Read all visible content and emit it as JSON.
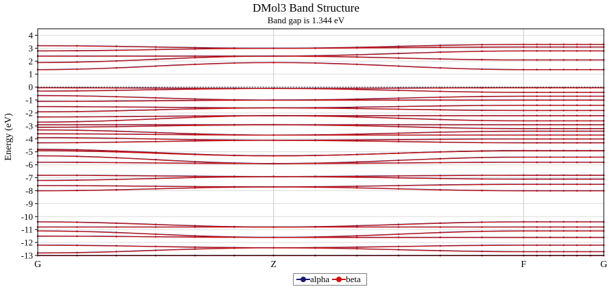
{
  "chart_data": {
    "type": "line",
    "title": "DMol3 Band Structure",
    "subtitle": "Band gap is 1.344 eV",
    "ylabel": "Energy (eV)",
    "xlabel": "",
    "ylim": [
      -13,
      4.5
    ],
    "yticks": [
      4,
      3,
      2,
      1,
      0,
      -1,
      -2,
      -3,
      -4,
      -5,
      -6,
      -7,
      -8,
      -9,
      -10,
      -11,
      -12,
      -13
    ],
    "kpath": [
      {
        "label": "G",
        "x": 0
      },
      {
        "label": "Z",
        "x": 1
      },
      {
        "label": "F",
        "x": 2.06
      },
      {
        "label": "G",
        "x": 2.4
      }
    ],
    "grid": true,
    "fermi_level": 0,
    "legend_position": "bottom-center",
    "colors": {
      "alpha": "#1a1a6e",
      "beta": "#cc1111"
    },
    "series": [
      {
        "name": "alpha",
        "bands_at_kpoints": {
          "G1": [
            3.2,
            2.8,
            2.4,
            1.9,
            1.35,
            -0.05,
            -0.3,
            -0.65,
            -1.1,
            -1.5,
            -1.9,
            -2.3,
            -2.7,
            -2.9,
            -3.1,
            -3.3,
            -3.6,
            -3.9,
            -4.3,
            -4.8,
            -4.9,
            -5.3,
            -5.8,
            -6.8,
            -7.2,
            -7.6,
            -8.0,
            -10.4,
            -10.8,
            -11.1,
            -11.5,
            -12.2,
            -12.8,
            -13.0
          ],
          "Z": [
            3.0,
            3.0,
            2.4,
            2.4,
            1.9,
            -0.1,
            -0.1,
            -1.0,
            -1.0,
            -1.6,
            -1.6,
            -2.2,
            -2.2,
            -2.9,
            -2.9,
            -3.7,
            -3.7,
            -4.1,
            -4.1,
            -5.3,
            -5.3,
            -5.9,
            -5.9,
            -6.9,
            -6.9,
            -7.7,
            -7.7,
            -10.8,
            -10.8,
            -11.6,
            -11.6,
            -12.4,
            -12.4,
            -13.0
          ],
          "F": [
            3.3,
            3.1,
            2.8,
            2.1,
            1.35,
            -0.05,
            -0.4,
            -0.7,
            -1.0,
            -1.4,
            -1.8,
            -2.2,
            -2.6,
            -2.9,
            -3.2,
            -3.4,
            -3.7,
            -4.0,
            -4.3,
            -4.9,
            -4.9,
            -5.4,
            -5.8,
            -6.8,
            -7.1,
            -7.5,
            -8.0,
            -10.4,
            -10.8,
            -11.1,
            -11.6,
            -12.2,
            -12.7,
            -13.0
          ],
          "G2": [
            3.3,
            3.1,
            2.8,
            2.1,
            1.35,
            -0.05,
            -0.4,
            -0.7,
            -1.0,
            -1.4,
            -1.8,
            -2.2,
            -2.6,
            -2.9,
            -3.2,
            -3.4,
            -3.7,
            -4.0,
            -4.3,
            -4.9,
            -4.9,
            -5.4,
            -5.8,
            -6.8,
            -7.1,
            -7.5,
            -8.0,
            -10.4,
            -10.8,
            -11.1,
            -11.6,
            -12.2,
            -12.7,
            -13.0
          ]
        }
      },
      {
        "name": "beta",
        "bands_at_kpoints": {
          "G1": [
            3.2,
            2.8,
            2.4,
            1.9,
            1.35,
            -0.05,
            -0.3,
            -0.65,
            -1.1,
            -1.5,
            -1.9,
            -2.3,
            -2.7,
            -2.9,
            -3.1,
            -3.3,
            -3.6,
            -3.9,
            -4.3,
            -4.8,
            -4.9,
            -5.3,
            -5.8,
            -6.8,
            -7.2,
            -7.6,
            -8.0,
            -10.4,
            -10.8,
            -11.1,
            -11.5,
            -12.2,
            -12.8,
            -13.0
          ],
          "Z": [
            3.0,
            3.0,
            2.4,
            2.4,
            1.9,
            -0.1,
            -0.1,
            -1.0,
            -1.0,
            -1.6,
            -1.6,
            -2.2,
            -2.2,
            -2.9,
            -2.9,
            -3.7,
            -3.7,
            -4.1,
            -4.1,
            -5.3,
            -5.3,
            -5.9,
            -5.9,
            -6.9,
            -6.9,
            -7.7,
            -7.7,
            -10.8,
            -10.8,
            -11.6,
            -11.6,
            -12.4,
            -12.4,
            -13.0
          ],
          "F": [
            3.3,
            3.1,
            2.8,
            2.1,
            1.35,
            -0.05,
            -0.4,
            -0.7,
            -1.0,
            -1.4,
            -1.8,
            -2.2,
            -2.6,
            -2.9,
            -3.2,
            -3.4,
            -3.7,
            -4.0,
            -4.3,
            -4.9,
            -4.9,
            -5.4,
            -5.8,
            -6.8,
            -7.1,
            -7.5,
            -8.0,
            -10.4,
            -10.8,
            -11.1,
            -11.6,
            -12.2,
            -12.7,
            -13.0
          ],
          "G2": [
            3.3,
            3.1,
            2.8,
            2.1,
            1.35,
            -0.05,
            -0.4,
            -0.7,
            -1.0,
            -1.4,
            -1.8,
            -2.2,
            -2.6,
            -2.9,
            -3.2,
            -3.4,
            -3.7,
            -4.0,
            -4.3,
            -4.9,
            -4.9,
            -5.4,
            -5.8,
            -6.8,
            -7.1,
            -7.5,
            -8.0,
            -10.4,
            -10.8,
            -11.1,
            -11.6,
            -12.2,
            -12.7,
            -13.0
          ]
        }
      }
    ]
  }
}
